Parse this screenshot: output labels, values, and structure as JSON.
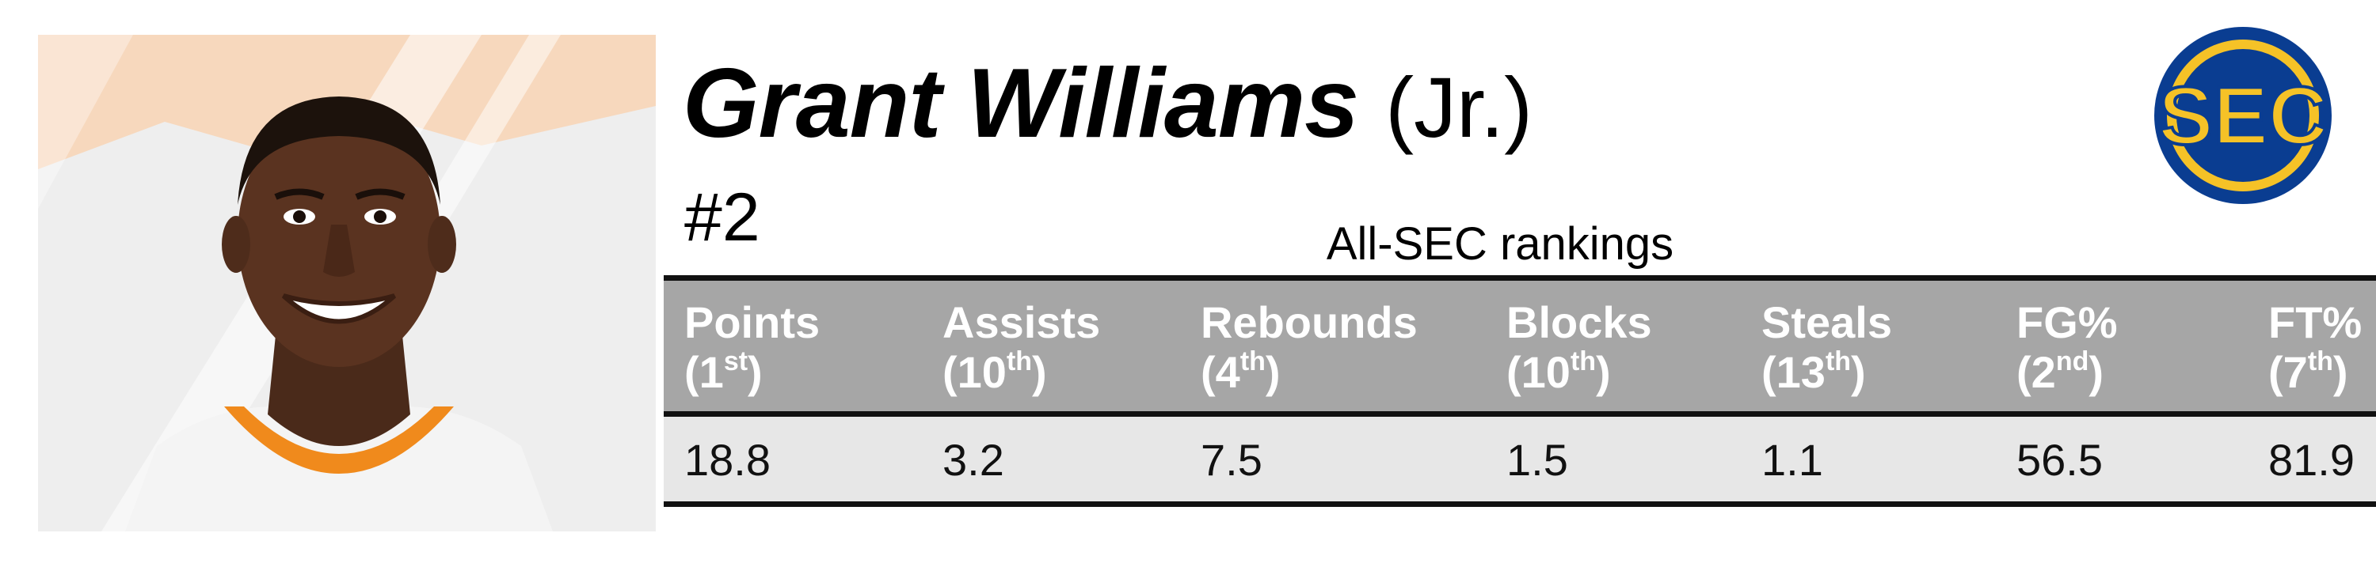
{
  "player": {
    "name": "Grant Williams",
    "class": "(Jr.)",
    "number": "#2"
  },
  "caption": "All-SEC rankings",
  "logo": {
    "text": "SEC",
    "colors": {
      "ring": "#0a3d91",
      "fill": "#f5c227"
    }
  },
  "colors": {
    "header_bg": "#a6a6a6",
    "row_bg": "#e7e7e7",
    "rule": "#111111",
    "jersey_orange": "#f08a1c"
  },
  "stats": [
    {
      "label": "Points",
      "rank_num": "1",
      "rank_suffix": "st",
      "value": "18.8"
    },
    {
      "label": "Assists",
      "rank_num": "10",
      "rank_suffix": "th",
      "value": "3.2"
    },
    {
      "label": "Rebounds",
      "rank_num": "4",
      "rank_suffix": "th",
      "value": "7.5"
    },
    {
      "label": "Blocks",
      "rank_num": "10",
      "rank_suffix": "th",
      "value": "1.5"
    },
    {
      "label": "Steals",
      "rank_num": "13",
      "rank_suffix": "th",
      "value": "1.1"
    },
    {
      "label": "FG%",
      "rank_num": "2",
      "rank_suffix": "nd",
      "value": "56.5"
    },
    {
      "label": "FT%",
      "rank_num": "7",
      "rank_suffix": "th",
      "value": "81.9"
    }
  ]
}
